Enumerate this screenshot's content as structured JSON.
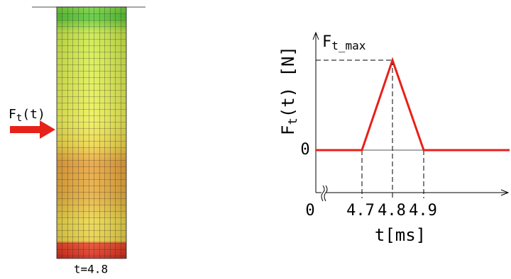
{
  "left_panel": {
    "force_label": {
      "main": "F",
      "sub": "t",
      "suffix": "(t)"
    },
    "caption": "t=4.8"
  },
  "right_panel": {
    "y_axis_label": {
      "main": "F",
      "sub": "t",
      "suffix": "(t) [N]"
    },
    "peak_label": {
      "main": "F",
      "sub": "t_max"
    },
    "y_zero_label": "0",
    "x_tick_labels": [
      "0",
      "4.7",
      "4.8",
      "4.9"
    ],
    "x_axis_label": "t[ms]"
  }
}
